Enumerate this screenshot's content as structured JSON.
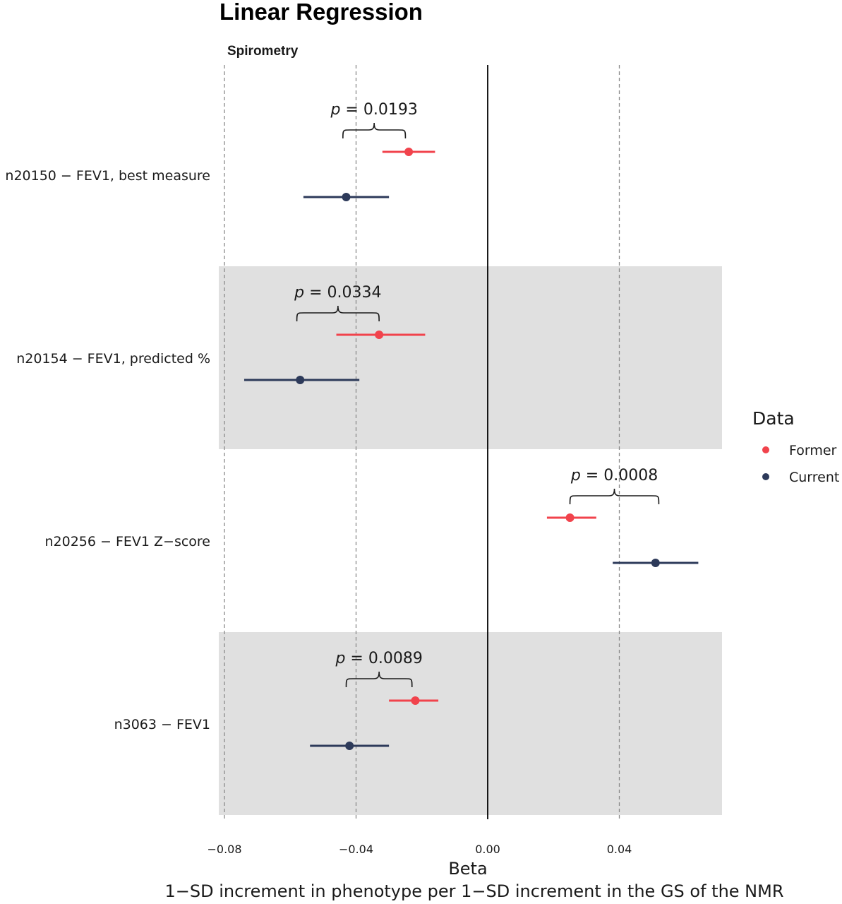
{
  "chart_data": {
    "type": "scatter",
    "title": "Linear Regression",
    "facet_label": "Spirometry",
    "xlabel": "Beta",
    "xlabel_sub": "1−SD increment in phenotype per 1−SD increment in the GS of the NMR",
    "xlim": [
      -0.088,
      0.07
    ],
    "xticks": [
      -0.08,
      -0.04,
      0.0,
      0.04
    ],
    "xtick_labels": [
      "−0.08",
      "−0.04",
      "0.00",
      "0.04"
    ],
    "reference_line": 0.0,
    "dashed_gridlines": [
      -0.08,
      -0.04,
      0.04
    ],
    "categories": [
      "n20150 − FEV1, best measure",
      "n20154 − FEV1, predicted %",
      "n20256 − FEV1 Z−score",
      "n3063 − FEV1"
    ],
    "shaded_rows": [
      false,
      true,
      false,
      true
    ],
    "series": [
      {
        "name": "Former",
        "color": "#f1434c",
        "points": [
          {
            "estimate": -0.024,
            "lower": -0.032,
            "upper": -0.016
          },
          {
            "estimate": -0.033,
            "lower": -0.046,
            "upper": -0.019
          },
          {
            "estimate": 0.025,
            "lower": 0.018,
            "upper": 0.033
          },
          {
            "estimate": -0.022,
            "lower": -0.03,
            "upper": -0.015
          }
        ]
      },
      {
        "name": "Current",
        "color": "#2d3a5a",
        "points": [
          {
            "estimate": -0.043,
            "lower": -0.056,
            "upper": -0.03
          },
          {
            "estimate": -0.057,
            "lower": -0.074,
            "upper": -0.039
          },
          {
            "estimate": 0.051,
            "lower": 0.038,
            "upper": 0.064
          },
          {
            "estimate": -0.042,
            "lower": -0.054,
            "upper": -0.03
          }
        ]
      }
    ],
    "annotations": [
      {
        "prefix": "p",
        "text": "= 0.0193",
        "bracket": [
          -0.044,
          -0.025
        ]
      },
      {
        "prefix": "p",
        "text": "= 0.0334",
        "bracket": [
          -0.058,
          -0.033
        ]
      },
      {
        "prefix": "p",
        "text": "= 0.0008",
        "bracket": [
          0.025,
          0.052
        ]
      },
      {
        "prefix": "p",
        "text": "= 0.0089",
        "bracket": [
          -0.043,
          -0.023
        ]
      }
    ],
    "legend": {
      "title": "Data",
      "position": "right",
      "entries": [
        "Former",
        "Current"
      ]
    }
  }
}
